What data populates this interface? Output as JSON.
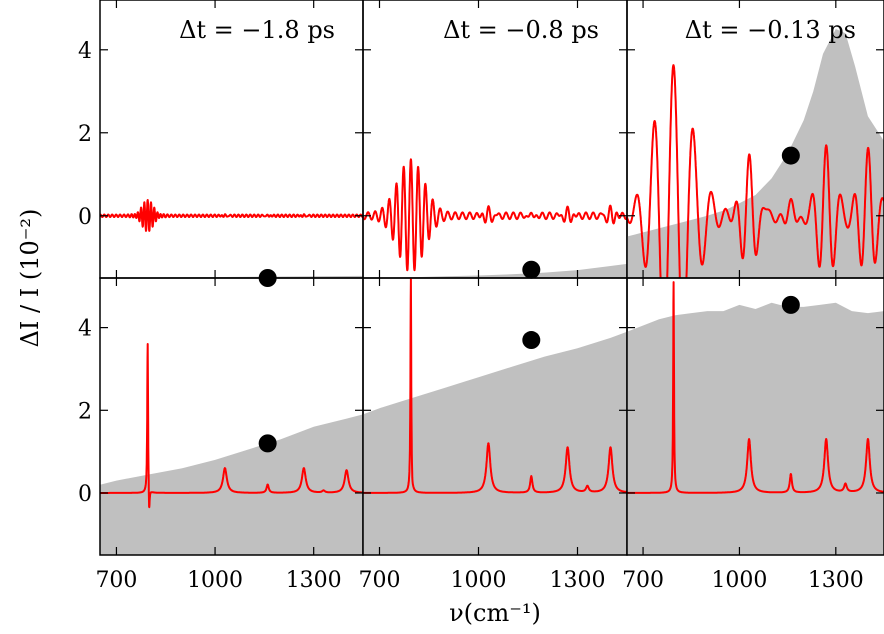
{
  "chart_data": {
    "type": "area",
    "layout": "2 rows x 3 columns of panels with shared axes",
    "xlabel": "ν(cm⁻¹)",
    "ylabel": "ΔI / I  (10⁻²)",
    "xlim": [
      650,
      1450
    ],
    "ylim": [
      -1.5,
      5.2
    ],
    "xticks": [
      700,
      1000,
      1300
    ],
    "yticks": [
      0,
      2,
      4
    ],
    "colors": {
      "shaded": "#c0c0c0",
      "line": "#ff0000",
      "marker": "#000000"
    },
    "grid": false,
    "panels": [
      {
        "row": 0,
        "col": 0,
        "title": "Δt = −1.8 ps",
        "shaded": {
          "x": [
            650,
            1450
          ],
          "y": [
            -1.5,
            -1.45
          ]
        },
        "line": {
          "baseline": 0,
          "base_ripple": 0.03,
          "base_ripple_period": 12,
          "features": [
            {
              "type": "wavelet",
              "x": 795,
              "amp": 0.35,
              "period": 10,
              "width": 20
            },
            {
              "type": "wavelet",
              "x": 1030,
              "amp": 0.06,
              "period": 12,
              "width": 8
            },
            {
              "type": "wavelet",
              "x": 1160,
              "amp": 0.05,
              "period": 12,
              "width": 8
            },
            {
              "type": "wavelet",
              "x": 1270,
              "amp": 0.06,
              "period": 12,
              "width": 8
            }
          ]
        },
        "marker": {
          "x": 1160,
          "y": -1.5
        }
      },
      {
        "row": 0,
        "col": 1,
        "title": "Δt = −0.8 ps",
        "shaded": {
          "x": [
            650,
            700,
            800,
            900,
            1000,
            1100,
            1200,
            1300,
            1400,
            1450
          ],
          "y": [
            -1.5,
            -1.49,
            -1.48,
            -1.46,
            -1.44,
            -1.41,
            -1.37,
            -1.31,
            -1.21,
            -1.16
          ]
        },
        "line": {
          "baseline": 0,
          "base_ripple": 0.08,
          "base_ripple_period": 22,
          "features": [
            {
              "type": "wavelet",
              "x": 795,
              "amp": 1.3,
              "period": 22,
              "width": 40
            },
            {
              "type": "wavelet",
              "x": 1030,
              "amp": 0.3,
              "period": 22,
              "width": 14
            },
            {
              "type": "wavelet",
              "x": 1160,
              "amp": 0.15,
              "period": 22,
              "width": 12
            },
            {
              "type": "wavelet",
              "x": 1270,
              "amp": 0.3,
              "period": 22,
              "width": 14
            },
            {
              "type": "wavelet",
              "x": 1400,
              "amp": 0.3,
              "period": 22,
              "width": 14
            }
          ]
        },
        "marker": {
          "x": 1160,
          "y": -1.3
        }
      },
      {
        "row": 0,
        "col": 2,
        "title": "Δt = −0.13 ps",
        "shaded": {
          "x": [
            650,
            700,
            800,
            900,
            960,
            1000,
            1050,
            1100,
            1150,
            1200,
            1230,
            1260,
            1300,
            1330,
            1360,
            1400,
            1450
          ],
          "y": [
            -0.5,
            -0.4,
            -0.2,
            0.0,
            0.15,
            0.3,
            0.5,
            0.9,
            1.5,
            2.3,
            3.0,
            3.9,
            4.5,
            4.4,
            3.6,
            2.4,
            1.8
          ]
        },
        "line": {
          "baseline": 0,
          "base_ripple": 0.2,
          "base_ripple_period": 45,
          "features": [
            {
              "type": "wavelet",
              "x": 795,
              "amp": 3.8,
              "period": 60,
              "width": 55
            },
            {
              "type": "wavelet",
              "x": 1030,
              "amp": 1.6,
              "period": 45,
              "width": 25
            },
            {
              "type": "wavelet",
              "x": 1160,
              "amp": 0.6,
              "period": 45,
              "width": 20
            },
            {
              "type": "wavelet",
              "x": 1270,
              "amp": 1.5,
              "period": 45,
              "width": 25
            },
            {
              "type": "wavelet",
              "x": 1400,
              "amp": 1.5,
              "period": 45,
              "width": 25
            }
          ]
        },
        "marker": {
          "x": 1160,
          "y": 1.45
        }
      },
      {
        "row": 1,
        "col": 0,
        "title": "",
        "shaded": {
          "x": [
            650,
            700,
            800,
            900,
            1000,
            1100,
            1200,
            1300,
            1400,
            1450
          ],
          "y": [
            0.2,
            0.3,
            0.45,
            0.6,
            0.8,
            1.05,
            1.3,
            1.6,
            1.8,
            1.9
          ]
        },
        "line": {
          "baseline": 0,
          "base_ripple": 0,
          "base_ripple_period": 10,
          "features": [
            {
              "type": "dispersive",
              "x": 795,
              "amp": 3.7,
              "width": 1.5,
              "neg": -0.7
            },
            {
              "type": "lorentzian",
              "x": 1030,
              "amp": 0.6,
              "width": 7
            },
            {
              "type": "lorentzian",
              "x": 1160,
              "amp": 0.2,
              "width": 4
            },
            {
              "type": "lorentzian",
              "x": 1270,
              "amp": 0.6,
              "width": 7
            },
            {
              "type": "lorentzian",
              "x": 1330,
              "amp": 0.05,
              "width": 5
            },
            {
              "type": "lorentzian",
              "x": 1400,
              "amp": 0.55,
              "width": 7
            }
          ]
        },
        "marker": {
          "x": 1160,
          "y": 1.2
        }
      },
      {
        "row": 1,
        "col": 1,
        "title": "",
        "shaded": {
          "x": [
            650,
            700,
            800,
            900,
            1000,
            1100,
            1200,
            1300,
            1400,
            1450
          ],
          "y": [
            1.9,
            2.05,
            2.3,
            2.55,
            2.8,
            3.05,
            3.3,
            3.5,
            3.75,
            3.9
          ]
        },
        "line": {
          "baseline": 0,
          "base_ripple": 0,
          "base_ripple_period": 10,
          "features": [
            {
              "type": "dispersive",
              "x": 795,
              "amp": 5.2,
              "width": 1.5,
              "neg": -0.15
            },
            {
              "type": "lorentzian",
              "x": 1030,
              "amp": 1.2,
              "width": 7
            },
            {
              "type": "lorentzian",
              "x": 1160,
              "amp": 0.4,
              "width": 4
            },
            {
              "type": "lorentzian",
              "x": 1270,
              "amp": 1.1,
              "width": 7
            },
            {
              "type": "lorentzian",
              "x": 1330,
              "amp": 0.15,
              "width": 5
            },
            {
              "type": "lorentzian",
              "x": 1400,
              "amp": 1.1,
              "width": 7
            }
          ]
        },
        "marker": {
          "x": 1160,
          "y": 3.7
        }
      },
      {
        "row": 1,
        "col": 2,
        "title": "",
        "shaded": {
          "x": [
            650,
            700,
            750,
            800,
            850,
            900,
            950,
            1000,
            1050,
            1100,
            1150,
            1200,
            1250,
            1300,
            1350,
            1400,
            1450
          ],
          "y": [
            3.9,
            4.05,
            4.2,
            4.3,
            4.35,
            4.4,
            4.4,
            4.55,
            4.45,
            4.6,
            4.5,
            4.5,
            4.55,
            4.6,
            4.4,
            4.35,
            4.4
          ]
        },
        "line": {
          "baseline": 0,
          "base_ripple": 0,
          "base_ripple_period": 10,
          "features": [
            {
              "type": "dispersive",
              "x": 795,
              "amp": 5.1,
              "width": 1.5,
              "neg": 0
            },
            {
              "type": "lorentzian",
              "x": 1030,
              "amp": 1.3,
              "width": 7
            },
            {
              "type": "lorentzian",
              "x": 1160,
              "amp": 0.45,
              "width": 4
            },
            {
              "type": "lorentzian",
              "x": 1270,
              "amp": 1.3,
              "width": 7
            },
            {
              "type": "lorentzian",
              "x": 1330,
              "amp": 0.2,
              "width": 5
            },
            {
              "type": "lorentzian",
              "x": 1400,
              "amp": 1.3,
              "width": 7
            }
          ]
        },
        "marker": {
          "x": 1160,
          "y": 4.55
        }
      }
    ]
  }
}
